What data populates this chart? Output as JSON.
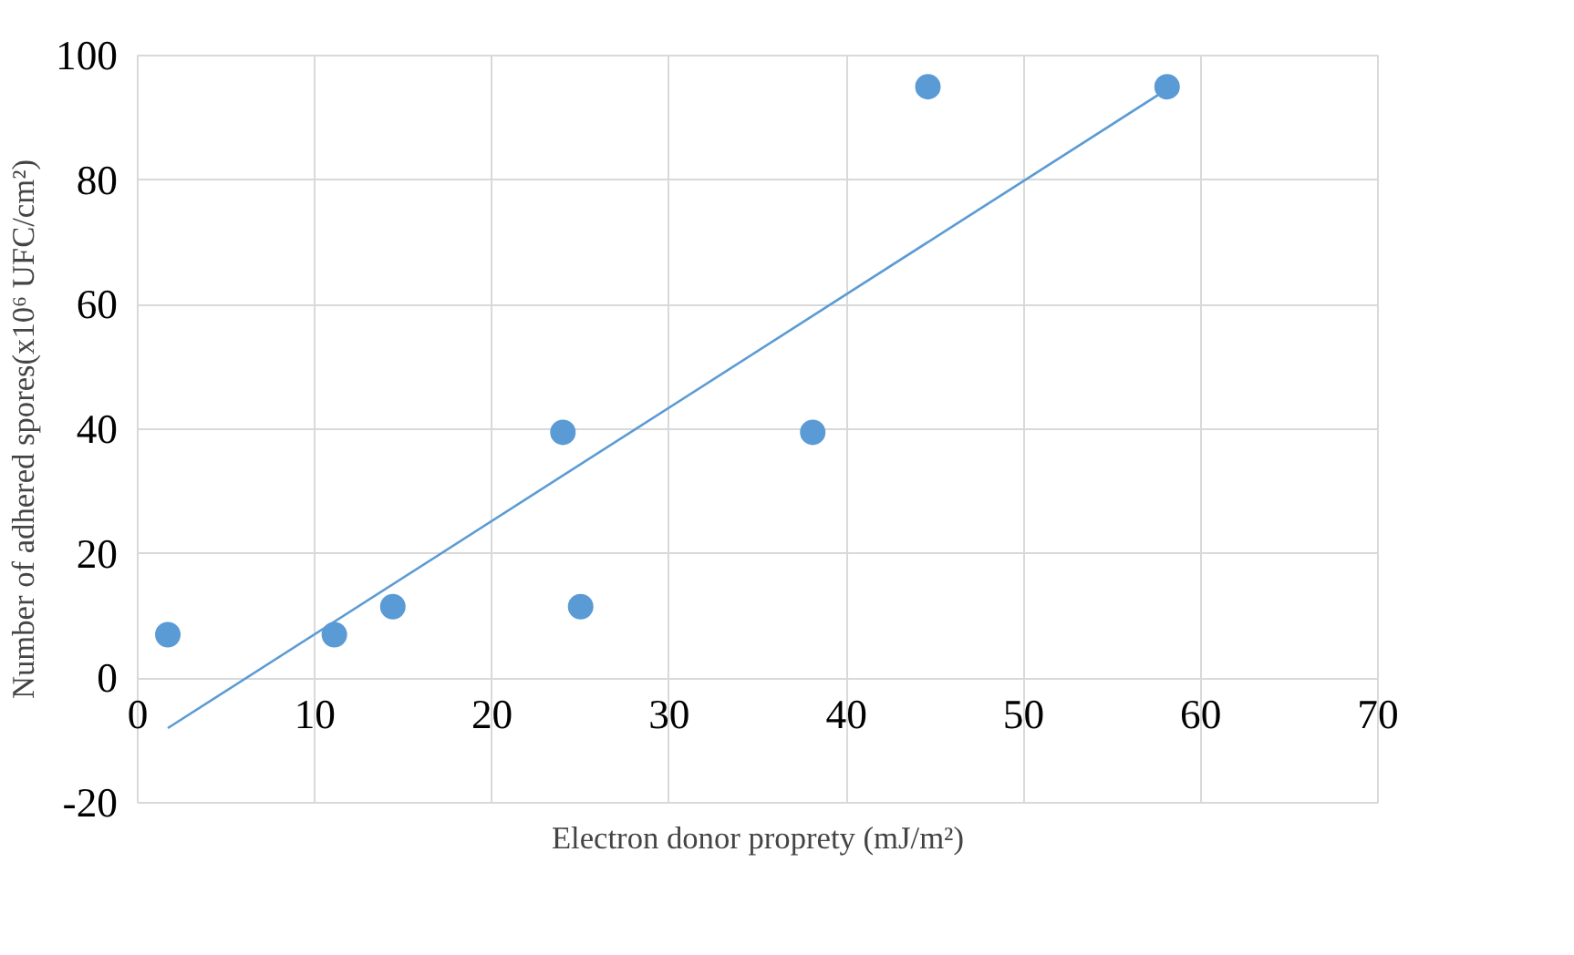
{
  "chart_data": {
    "type": "scatter",
    "xlabel": "Electron donor proprety (mJ/m²)",
    "ylabel": "Number of adhered spores(x10⁶ UFC/cm²)",
    "xlim": [
      0,
      70
    ],
    "xticks": [
      0,
      10,
      20,
      30,
      40,
      50,
      60,
      70
    ],
    "ylim": [
      -20,
      100
    ],
    "yticks": [
      -20,
      0,
      20,
      40,
      60,
      80,
      100
    ],
    "grid": true,
    "series": [
      {
        "marker": "circle",
        "color": "#5b9bd5",
        "x": [
          1.7,
          11.1,
          14.4,
          24.0,
          25.0,
          38.1,
          44.6,
          58.1
        ],
        "values": [
          7,
          7,
          11.5,
          39.5,
          11.5,
          39.5,
          95,
          95
        ]
      },
      {
        "type": "line",
        "color": "#5b9bd5",
        "x": [
          1.7,
          58.1
        ],
        "values": [
          -8,
          94.6
        ]
      }
    ]
  }
}
